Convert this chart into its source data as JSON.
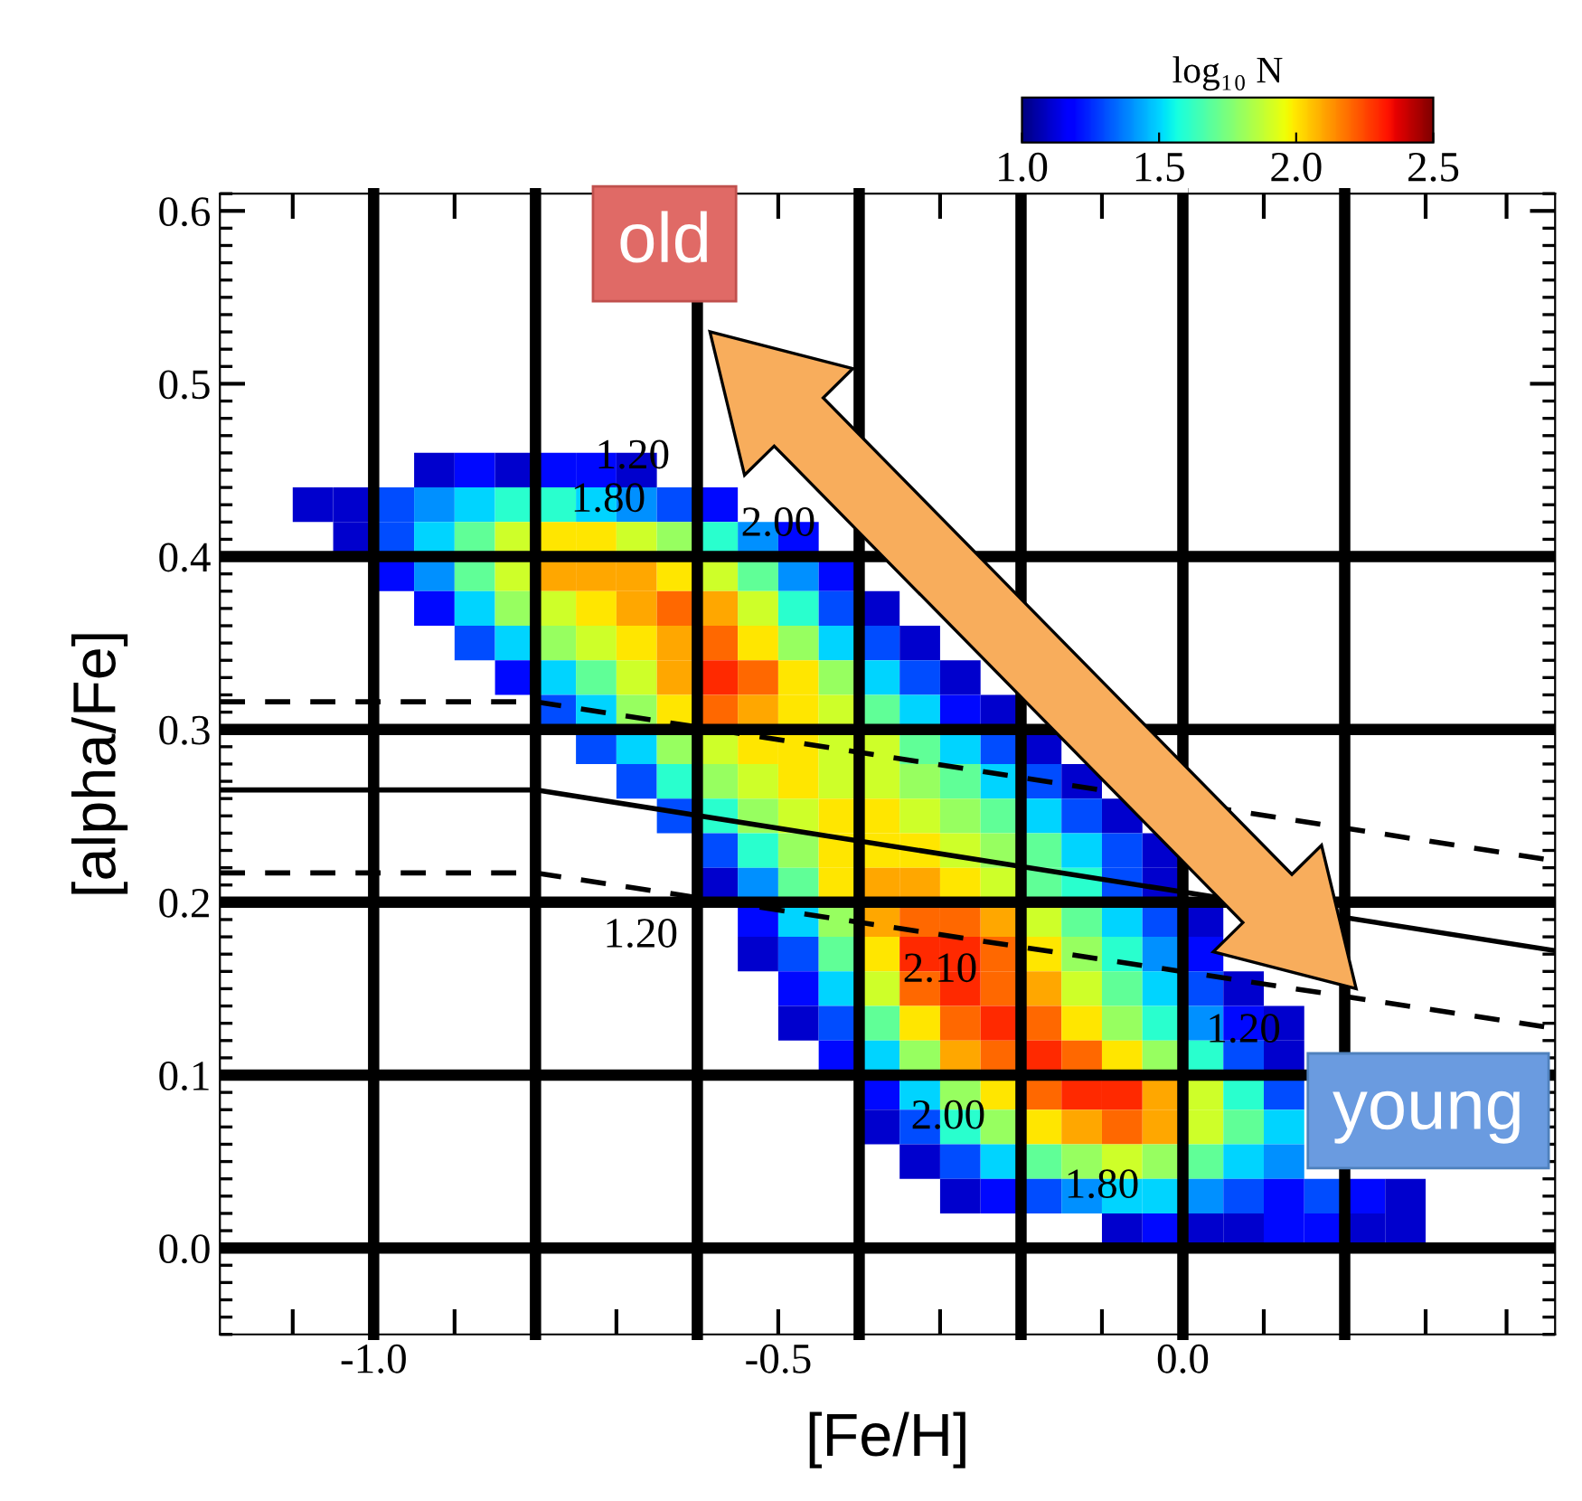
{
  "chart_data": {
    "type": "heatmap",
    "xlabel": "[Fe/H]",
    "ylabel": "[alpha/Fe]",
    "clabel": "log₁₀ N",
    "xlim": [
      -1.19,
      0.46
    ],
    "ylim": [
      -0.05,
      0.61
    ],
    "xticks": [
      {
        "value": -1.1,
        "label": null
      },
      {
        "value": -1.0,
        "label": "-1.0"
      },
      {
        "value": -0.9,
        "label": null
      },
      {
        "value": -0.8,
        "label": null
      },
      {
        "value": -0.7,
        "label": null
      },
      {
        "value": -0.6,
        "label": null
      },
      {
        "value": -0.5,
        "label": "-0.5"
      },
      {
        "value": -0.4,
        "label": null
      },
      {
        "value": -0.3,
        "label": null
      },
      {
        "value": -0.2,
        "label": null
      },
      {
        "value": -0.1,
        "label": null
      },
      {
        "value": 0.0,
        "label": "0.0"
      },
      {
        "value": 0.1,
        "label": null
      },
      {
        "value": 0.2,
        "label": null
      },
      {
        "value": 0.3,
        "label": null
      },
      {
        "value": 0.4,
        "label": null
      }
    ],
    "yticks": [
      {
        "value": 0.0,
        "label": "0.0"
      },
      {
        "value": 0.1,
        "label": "0.1"
      },
      {
        "value": 0.2,
        "label": "0.2"
      },
      {
        "value": 0.3,
        "label": "0.3"
      },
      {
        "value": 0.4,
        "label": "0.4"
      },
      {
        "value": 0.5,
        "label": "0.5"
      },
      {
        "value": 0.6,
        "label": "0.6"
      }
    ],
    "clim": [
      1.0,
      2.5
    ],
    "cticks": [
      {
        "value": 1.0,
        "label": "1.0"
      },
      {
        "value": 1.5,
        "label": "1.5"
      },
      {
        "value": 2.0,
        "label": "2.0"
      },
      {
        "value": 2.5,
        "label": "2.5"
      }
    ],
    "x": [
      -1.075,
      -1.025,
      -0.975,
      -0.925,
      -0.875,
      -0.825,
      -0.775,
      -0.725,
      -0.675,
      -0.625,
      -0.575,
      -0.525,
      -0.475,
      -0.425,
      -0.375,
      -0.325,
      -0.275,
      -0.225,
      -0.175,
      -0.125,
      -0.075,
      -0.025,
      0.025,
      0.075,
      0.125,
      0.175,
      0.225,
      0.275
    ],
    "y": [
      0.45,
      0.43,
      0.41,
      0.39,
      0.37,
      0.35,
      0.33,
      0.31,
      0.29,
      0.27,
      0.25,
      0.23,
      0.21,
      0.19,
      0.17,
      0.15,
      0.13,
      0.11,
      0.09,
      0.07,
      0.05,
      0.03,
      0.01
    ],
    "cells": [
      [
        null,
        null,
        null,
        1.1,
        1.2,
        1.1,
        1.2,
        1.2,
        1.1,
        null,
        null,
        null,
        null,
        null,
        null,
        null,
        null,
        null,
        null,
        null,
        null,
        null,
        null,
        null,
        null,
        null,
        null,
        null
      ],
      [
        1.1,
        1.1,
        1.3,
        1.4,
        1.5,
        1.6,
        1.6,
        1.5,
        1.4,
        1.3,
        1.2,
        null,
        null,
        null,
        null,
        null,
        null,
        null,
        null,
        null,
        null,
        null,
        null,
        null,
        null,
        null,
        null,
        null
      ],
      [
        null,
        1.1,
        1.3,
        1.5,
        1.7,
        1.9,
        2.0,
        2.0,
        1.9,
        1.8,
        1.6,
        1.4,
        1.2,
        null,
        null,
        null,
        null,
        null,
        null,
        null,
        null,
        null,
        null,
        null,
        null,
        null,
        null,
        null
      ],
      [
        null,
        null,
        1.2,
        1.4,
        1.7,
        1.9,
        2.1,
        2.1,
        2.1,
        2.0,
        1.9,
        1.7,
        1.4,
        1.2,
        null,
        null,
        null,
        null,
        null,
        null,
        null,
        null,
        null,
        null,
        null,
        null,
        null,
        null
      ],
      [
        null,
        null,
        null,
        1.2,
        1.5,
        1.8,
        1.9,
        2.0,
        2.1,
        2.2,
        2.1,
        1.9,
        1.6,
        1.3,
        1.1,
        null,
        null,
        null,
        null,
        null,
        null,
        null,
        null,
        null,
        null,
        null,
        null,
        null
      ],
      [
        null,
        null,
        null,
        null,
        1.3,
        1.5,
        1.8,
        1.9,
        2.0,
        2.1,
        2.2,
        2.0,
        1.8,
        1.5,
        1.3,
        1.1,
        null,
        null,
        null,
        null,
        null,
        null,
        null,
        null,
        null,
        null,
        null,
        null
      ],
      [
        null,
        null,
        null,
        null,
        null,
        1.2,
        1.5,
        1.7,
        1.9,
        2.1,
        2.3,
        2.2,
        2.0,
        1.8,
        1.5,
        1.3,
        1.1,
        null,
        null,
        null,
        null,
        null,
        null,
        null,
        null,
        null,
        null,
        null
      ],
      [
        null,
        null,
        null,
        null,
        null,
        null,
        1.3,
        1.5,
        1.8,
        2.0,
        2.2,
        2.1,
        2.0,
        1.9,
        1.7,
        1.5,
        1.2,
        1.1,
        null,
        null,
        null,
        null,
        null,
        null,
        null,
        null,
        null,
        null
      ],
      [
        null,
        null,
        null,
        null,
        null,
        null,
        null,
        1.3,
        1.5,
        1.8,
        1.9,
        2.0,
        2.0,
        1.9,
        1.9,
        1.7,
        1.5,
        1.3,
        1.1,
        null,
        null,
        null,
        null,
        null,
        null,
        null,
        null,
        null
      ],
      [
        null,
        null,
        null,
        null,
        null,
        null,
        null,
        null,
        1.3,
        1.6,
        1.8,
        1.9,
        2.0,
        1.9,
        1.9,
        1.8,
        1.7,
        1.5,
        1.3,
        1.1,
        null,
        null,
        null,
        null,
        null,
        null,
        null,
        null
      ],
      [
        null,
        null,
        null,
        null,
        null,
        null,
        null,
        null,
        null,
        1.3,
        1.6,
        1.8,
        1.9,
        2.0,
        2.0,
        1.9,
        1.8,
        1.7,
        1.5,
        1.3,
        1.1,
        null,
        null,
        null,
        null,
        null,
        null,
        null
      ],
      [
        null,
        null,
        null,
        null,
        null,
        null,
        null,
        null,
        null,
        null,
        1.3,
        1.6,
        1.8,
        2.0,
        2.0,
        2.0,
        1.9,
        1.8,
        1.7,
        1.5,
        1.3,
        1.1,
        null,
        null,
        null,
        null,
        null,
        null
      ],
      [
        null,
        null,
        null,
        null,
        null,
        null,
        null,
        null,
        null,
        null,
        1.1,
        1.4,
        1.7,
        2.0,
        2.1,
        2.1,
        2.0,
        1.9,
        1.7,
        1.6,
        1.3,
        1.1,
        null,
        null,
        null,
        null,
        null,
        null
      ],
      [
        null,
        null,
        null,
        null,
        null,
        null,
        null,
        null,
        null,
        null,
        null,
        1.2,
        1.5,
        1.8,
        2.1,
        2.2,
        2.2,
        2.1,
        1.9,
        1.7,
        1.5,
        1.3,
        1.1,
        null,
        null,
        null,
        null,
        null
      ],
      [
        null,
        null,
        null,
        null,
        null,
        null,
        null,
        null,
        null,
        null,
        null,
        1.1,
        1.3,
        1.7,
        2.0,
        2.3,
        2.3,
        2.2,
        2.0,
        1.8,
        1.6,
        1.4,
        1.2,
        null,
        null,
        null,
        null,
        null
      ],
      [
        null,
        null,
        null,
        null,
        null,
        null,
        null,
        null,
        null,
        null,
        null,
        null,
        1.2,
        1.5,
        1.9,
        2.2,
        2.3,
        2.2,
        2.1,
        1.9,
        1.7,
        1.5,
        1.3,
        1.1,
        null,
        null,
        null,
        null
      ],
      [
        null,
        null,
        null,
        null,
        null,
        null,
        null,
        null,
        null,
        null,
        null,
        null,
        1.1,
        1.3,
        1.7,
        2.0,
        2.2,
        2.3,
        2.2,
        2.0,
        1.8,
        1.6,
        1.4,
        1.2,
        1.1,
        null,
        null,
        null
      ],
      [
        null,
        null,
        null,
        null,
        null,
        null,
        null,
        null,
        null,
        null,
        null,
        null,
        null,
        1.2,
        1.5,
        1.8,
        2.1,
        2.2,
        2.3,
        2.2,
        2.0,
        1.8,
        1.6,
        1.3,
        1.1,
        null,
        null,
        null
      ],
      [
        null,
        null,
        null,
        null,
        null,
        null,
        null,
        null,
        null,
        null,
        null,
        null,
        null,
        null,
        1.2,
        1.5,
        1.8,
        2.0,
        2.2,
        2.3,
        2.3,
        2.1,
        1.9,
        1.6,
        1.3,
        null,
        null,
        null
      ],
      [
        null,
        null,
        null,
        null,
        null,
        null,
        null,
        null,
        null,
        null,
        null,
        null,
        null,
        null,
        1.1,
        1.3,
        1.6,
        1.8,
        2.0,
        2.1,
        2.2,
        2.1,
        1.9,
        1.7,
        1.5,
        null,
        null,
        null
      ],
      [
        null,
        null,
        null,
        null,
        null,
        null,
        null,
        null,
        null,
        null,
        null,
        null,
        null,
        null,
        null,
        1.1,
        1.3,
        1.5,
        1.7,
        1.8,
        1.9,
        1.8,
        1.7,
        1.5,
        1.4,
        null,
        null,
        null
      ],
      [
        null,
        null,
        null,
        null,
        null,
        null,
        null,
        null,
        null,
        null,
        null,
        null,
        null,
        null,
        null,
        null,
        1.1,
        1.2,
        1.3,
        1.4,
        1.5,
        1.5,
        1.4,
        1.3,
        1.2,
        1.3,
        1.2,
        1.1
      ],
      [
        null,
        null,
        null,
        null,
        null,
        null,
        null,
        null,
        null,
        null,
        null,
        null,
        null,
        null,
        null,
        null,
        null,
        null,
        null,
        null,
        1.1,
        1.2,
        1.1,
        1.1,
        1.2,
        1.2,
        1.1,
        1.1
      ]
    ],
    "series": [
      {
        "type": "line",
        "color": "#000000",
        "line_style": "dashed",
        "x": [
          -1.19,
          -0.8,
          0.46
        ],
        "values": [
          0.316,
          0.316,
          0.224
        ]
      },
      {
        "type": "line",
        "color": "#000000",
        "line_style": "solid",
        "x": [
          -1.19,
          -0.8,
          0.46
        ],
        "values": [
          0.265,
          0.265,
          0.172
        ]
      },
      {
        "type": "line",
        "color": "#000000",
        "line_style": "dashed",
        "x": [
          -1.19,
          -0.8,
          0.46
        ],
        "values": [
          0.217,
          0.217,
          0.127
        ]
      }
    ],
    "ref_lines": [
      {
        "axis": "x",
        "value": -1.0,
        "color": "#000000"
      },
      {
        "axis": "x",
        "value": -0.8,
        "color": "#000000"
      },
      {
        "axis": "x",
        "value": -0.6,
        "color": "#000000"
      },
      {
        "axis": "x",
        "value": -0.4,
        "color": "#000000"
      },
      {
        "axis": "x",
        "value": -0.2,
        "color": "#000000"
      },
      {
        "axis": "x",
        "value": 0.0,
        "color": "#000000"
      },
      {
        "axis": "x",
        "value": 0.2,
        "color": "#000000"
      },
      {
        "axis": "y",
        "value": 0.0,
        "color": "#000000"
      },
      {
        "axis": "y",
        "value": 0.1,
        "color": "#000000"
      },
      {
        "axis": "y",
        "value": 0.2,
        "color": "#000000"
      },
      {
        "axis": "y",
        "value": 0.3,
        "color": "#000000"
      },
      {
        "axis": "y",
        "value": 0.4,
        "color": "#000000"
      }
    ],
    "annotations": [
      "old",
      "young",
      "1.20",
      "1.80",
      "2.00",
      "1.20",
      "2.10",
      "2.00",
      "1.80",
      "1.20"
    ]
  }
}
